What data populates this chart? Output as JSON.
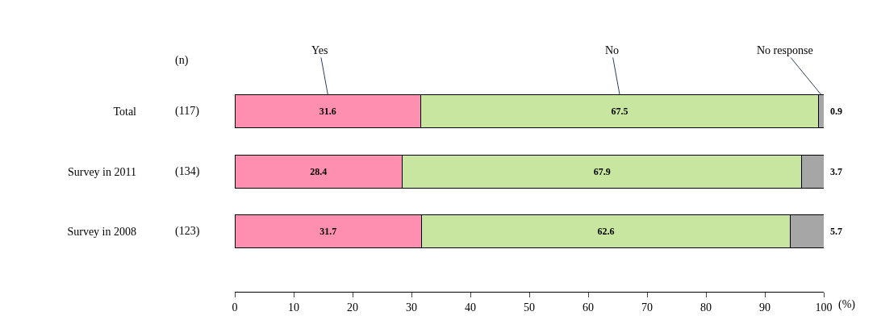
{
  "chart_data": {
    "type": "bar",
    "orientation": "horizontal",
    "stacked": true,
    "categories": [
      "Total",
      "Survey in 2011",
      "Survey in 2008"
    ],
    "series": [
      {
        "name": "Yes",
        "color": "#ff8fb1",
        "values": [
          31.6,
          28.4,
          31.7
        ]
      },
      {
        "name": "No",
        "color": "#c8e6a0",
        "values": [
          67.5,
          67.9,
          62.6
        ]
      },
      {
        "name": "No response",
        "color": "#a6a6a6",
        "values": [
          0.9,
          3.7,
          5.7
        ]
      }
    ],
    "data_labels": true,
    "xlabel": "(%)",
    "xlim": [
      0,
      100
    ],
    "xticks": [
      0,
      10,
      20,
      30,
      40,
      50,
      60,
      70,
      80,
      90,
      100
    ],
    "legend": false,
    "annotations": [
      "(n)",
      "(117)",
      "(134)",
      "(123)"
    ]
  }
}
